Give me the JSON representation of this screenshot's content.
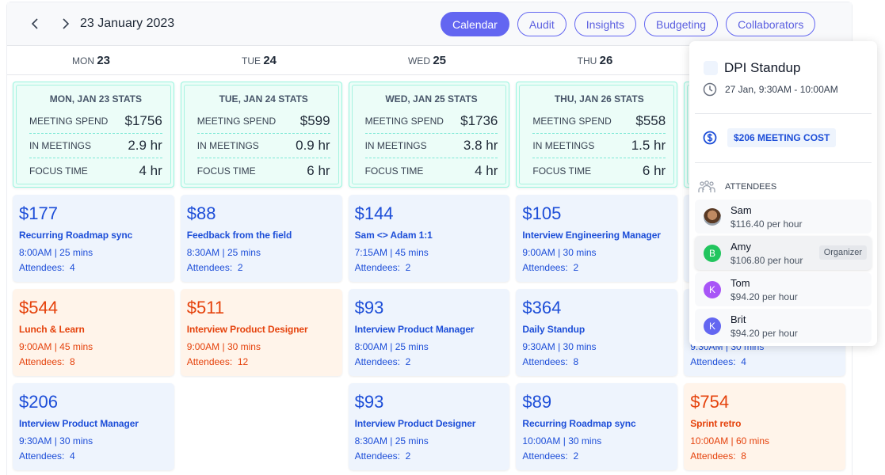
{
  "header": {
    "date": "23 January 2023",
    "tabs": [
      "Calendar",
      "Audit",
      "Insights",
      "Budgeting",
      "Collaborators"
    ],
    "active_tab": "Calendar"
  },
  "days": [
    {
      "dow": "MON",
      "num": "23",
      "stats": {
        "title": "MON, JAN 23 STATS",
        "spend": "$1756",
        "meetings": "2.9 hr",
        "focus": "4 hr"
      },
      "events": [
        {
          "cost": "$177",
          "title": "Recurring Roadmap sync",
          "time": "8:00AM | 25 mins",
          "attendees": "4",
          "color": "blue"
        },
        {
          "cost": "$544",
          "title": "Lunch & Learn",
          "time": "9:00AM | 45 mins",
          "attendees": "8",
          "color": "orange"
        },
        {
          "cost": "$206",
          "title": "Interview Product Manager",
          "time": "9:30AM | 30 mins",
          "attendees": "4",
          "color": "blue"
        }
      ]
    },
    {
      "dow": "TUE",
      "num": "24",
      "stats": {
        "title": "TUE, JAN 24 STATS",
        "spend": "$599",
        "meetings": "0.9 hr",
        "focus": "6 hr"
      },
      "events": [
        {
          "cost": "$88",
          "title": "Feedback from the field",
          "time": "8:30AM | 25 mins",
          "attendees": "2",
          "color": "blue"
        },
        {
          "cost": "$511",
          "title": "Interview Product Designer",
          "time": "9:00AM | 30 mins",
          "attendees": "12",
          "color": "orange"
        }
      ]
    },
    {
      "dow": "WED",
      "num": "25",
      "stats": {
        "title": "WED, JAN 25 STATS",
        "spend": "$1736",
        "meetings": "3.8 hr",
        "focus": "4 hr"
      },
      "events": [
        {
          "cost": "$144",
          "title": "Sam <> Adam 1:1",
          "time": "7:15AM | 45 mins",
          "attendees": "2",
          "color": "blue"
        },
        {
          "cost": "$93",
          "title": "Interview Product Manager",
          "time": "8:00AM | 25 mins",
          "attendees": "2",
          "color": "blue"
        },
        {
          "cost": "$93",
          "title": "Interview Product Designer",
          "time": "8:30AM | 25 mins",
          "attendees": "2",
          "color": "blue"
        }
      ]
    },
    {
      "dow": "THU",
      "num": "26",
      "stats": {
        "title": "THU, JAN 26 STATS",
        "spend": "$558",
        "meetings": "1.5 hr",
        "focus": "6 hr"
      },
      "events": [
        {
          "cost": "$105",
          "title": "Interview Engineering Manager",
          "time": "9:00AM | 30 mins",
          "attendees": "2",
          "color": "blue"
        },
        {
          "cost": "$364",
          "title": "Daily Standup",
          "time": "9:30AM | 30 mins",
          "attendees": "8",
          "color": "blue"
        },
        {
          "cost": "$89",
          "title": "Recurring Roadmap sync",
          "time": "10:00AM | 30 mins",
          "attendees": "2",
          "color": "blue"
        }
      ]
    },
    {
      "dow": "",
      "num": "",
      "stats": null,
      "events": [
        {
          "cost": "",
          "title": "",
          "time": "",
          "attendees": "",
          "color": "blue"
        },
        {
          "cost": "",
          "title": "",
          "time": "9:30AM | 30 mins",
          "attendees": "4",
          "color": "blue"
        },
        {
          "cost": "$754",
          "title": "Sprint retro",
          "time": "10:00AM | 60 mins",
          "attendees": "8",
          "color": "orange"
        }
      ]
    }
  ],
  "labels": {
    "spend": "MEETING SPEND",
    "meetings": "IN MEETINGS",
    "focus": "FOCUS TIME",
    "attendees": "Attendees:"
  },
  "popover": {
    "title": "DPI Standup",
    "time": "27 Jan, 9:30AM - 10:00AM",
    "cost": "$206 MEETING COST",
    "attendees_label": "ATTENDEES",
    "attendees": [
      {
        "name": "Sam",
        "rate": "$116.40 per hour",
        "initial": "",
        "color": "#8b5e3c",
        "photo": true
      },
      {
        "name": "Amy",
        "rate": "$106.80 per hour",
        "initial": "B",
        "color": "#22c55e",
        "organizer": "Organizer"
      },
      {
        "name": "Tom",
        "rate": "$94.20 per hour",
        "initial": "K",
        "color": "#a855f7"
      },
      {
        "name": "Brit",
        "rate": "$94.20 per hour",
        "initial": "K",
        "color": "#6366f1"
      }
    ]
  },
  "colors": {
    "accent": "#6366f1",
    "blue_text": "#1d4ed8",
    "orange_text": "#e5420c",
    "stats_bg": "#ecfdf8"
  }
}
